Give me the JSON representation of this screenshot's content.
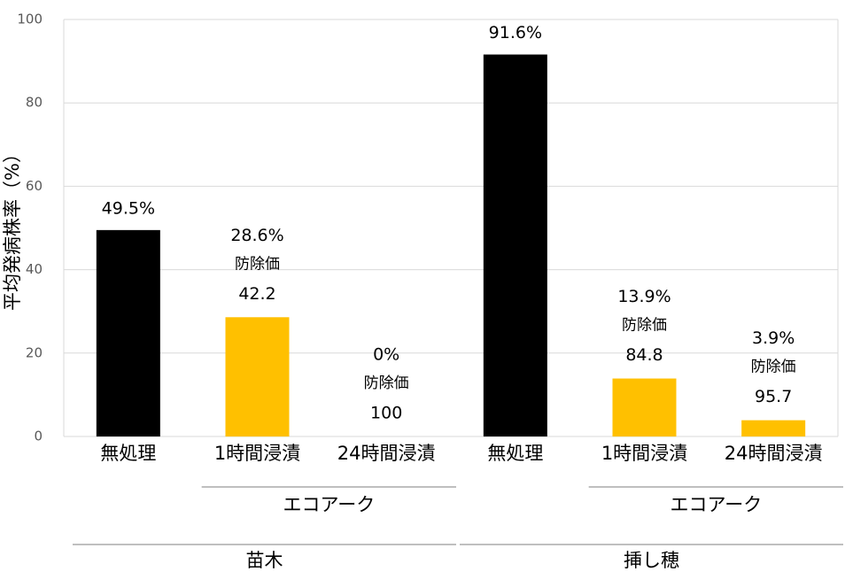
{
  "chart_data": {
    "type": "bar",
    "y_label": "平均発病株率（%）",
    "categories": [
      "無処理",
      "1時間浸漬",
      "24時間浸漬",
      "無処理",
      "1時間浸漬",
      "24時間浸漬"
    ],
    "values": [
      49.5,
      28.6,
      0,
      91.6,
      13.9,
      3.9
    ],
    "value_labels": [
      "49.5%",
      "28.6%",
      "0%",
      "91.6%",
      "13.9%",
      "3.9%"
    ],
    "colors": [
      "#000000",
      "#ffc000",
      "#ffc000",
      "#000000",
      "#ffc000",
      "#ffc000"
    ],
    "protection_label": "防除価",
    "protection_values": [
      null,
      42.2,
      100,
      null,
      84.8,
      95.7
    ],
    "group_labels": [
      null,
      "エコアーク",
      "エコアーク",
      null,
      "エコアーク",
      "エコアーク"
    ],
    "parent_labels": [
      "苗木",
      "苗木",
      "苗木",
      "挿し穂",
      "挿し穂",
      "挿し穂"
    ],
    "ylim": [
      0,
      100
    ],
    "yticks": [
      0,
      20,
      40,
      60,
      80,
      100
    ],
    "grid": true
  }
}
